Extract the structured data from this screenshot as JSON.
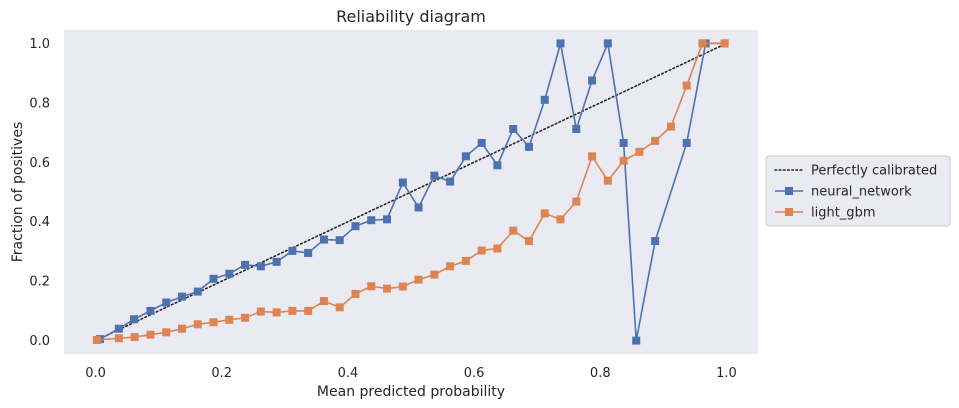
{
  "chart_data": {
    "type": "line",
    "title": "Reliability diagram",
    "xlabel": "Mean predicted probability",
    "ylabel": "Fraction of positives",
    "xlim": [
      -0.05,
      1.05
    ],
    "ylim": [
      -0.045,
      1.045
    ],
    "xticks": [
      0.0,
      0.2,
      0.4,
      0.6,
      0.8,
      1.0
    ],
    "xtick_labels": [
      "0.0",
      "0.2",
      "0.4",
      "0.6",
      "0.8",
      "1.0"
    ],
    "yticks": [
      0.0,
      0.2,
      0.4,
      0.6,
      0.8,
      1.0
    ],
    "ytick_labels": [
      "0.0",
      "0.2",
      "0.4",
      "0.6",
      "0.8",
      "1.0"
    ],
    "grid": false,
    "legend_position": "outside-right",
    "background_color": "#eaeaf2",
    "reference_line": {
      "name": "Perfectly calibrated",
      "x": [
        0,
        1
      ],
      "y": [
        0,
        1
      ],
      "style": "dotted",
      "color": "#262626"
    },
    "series": [
      {
        "name": "neural_network",
        "color": "#4c72b0",
        "marker": "square",
        "x": [
          0.007,
          0.037,
          0.061,
          0.087,
          0.112,
          0.137,
          0.162,
          0.187,
          0.212,
          0.237,
          0.262,
          0.287,
          0.312,
          0.337,
          0.362,
          0.387,
          0.412,
          0.437,
          0.462,
          0.487,
          0.512,
          0.537,
          0.562,
          0.587,
          0.612,
          0.637,
          0.662,
          0.687,
          0.712,
          0.737,
          0.762,
          0.787,
          0.812,
          0.837,
          0.857,
          0.887,
          0.937,
          0.967,
          0.997
        ],
        "y": [
          0.005,
          0.04,
          0.072,
          0.1,
          0.128,
          0.148,
          0.165,
          0.208,
          0.225,
          0.255,
          0.25,
          0.265,
          0.302,
          0.295,
          0.34,
          0.338,
          0.385,
          0.405,
          0.408,
          0.532,
          0.448,
          0.555,
          0.535,
          0.62,
          0.665,
          0.59,
          0.712,
          0.652,
          0.81,
          1.0,
          0.712,
          0.875,
          1.0,
          0.665,
          0.0,
          0.335,
          0.665,
          1.0,
          1.0
        ]
      },
      {
        "name": "light_gbm",
        "color": "#dd8452",
        "marker": "square",
        "x": [
          0.002,
          0.037,
          0.062,
          0.087,
          0.112,
          0.137,
          0.162,
          0.187,
          0.212,
          0.237,
          0.262,
          0.287,
          0.312,
          0.337,
          0.362,
          0.387,
          0.412,
          0.437,
          0.462,
          0.487,
          0.512,
          0.537,
          0.562,
          0.587,
          0.612,
          0.637,
          0.662,
          0.687,
          0.712,
          0.737,
          0.762,
          0.787,
          0.812,
          0.837,
          0.862,
          0.887,
          0.912,
          0.937,
          0.962,
          0.997
        ],
        "y": [
          0.002,
          0.008,
          0.012,
          0.02,
          0.028,
          0.04,
          0.055,
          0.062,
          0.07,
          0.077,
          0.098,
          0.095,
          0.1,
          0.1,
          0.133,
          0.112,
          0.157,
          0.183,
          0.175,
          0.182,
          0.205,
          0.222,
          0.25,
          0.268,
          0.303,
          0.31,
          0.37,
          0.335,
          0.428,
          0.408,
          0.468,
          0.62,
          0.538,
          0.605,
          0.635,
          0.672,
          0.72,
          0.858,
          1.0,
          1.0
        ]
      }
    ]
  }
}
